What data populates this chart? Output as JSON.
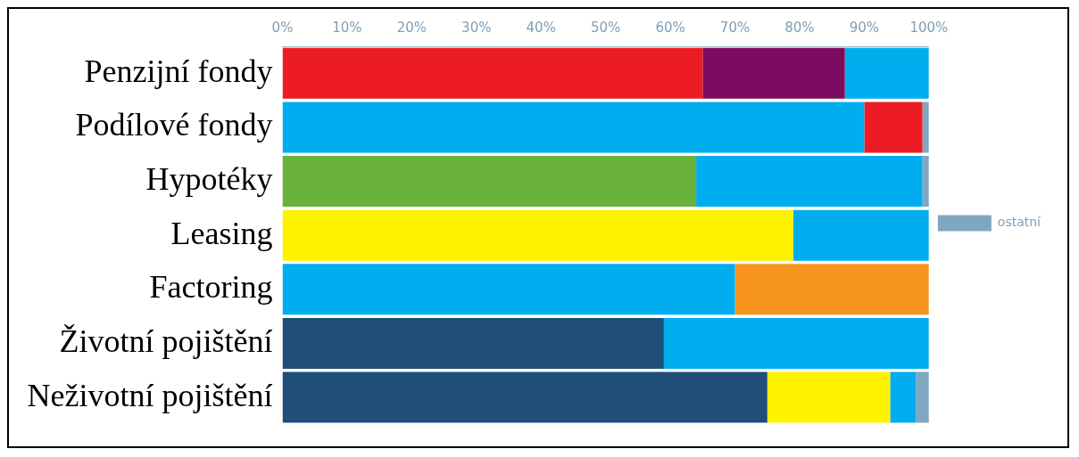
{
  "chart_data": {
    "type": "bar",
    "orientation": "horizontal",
    "stacked": true,
    "grid": false,
    "legend": "right",
    "categories": [
      "Penzijní fondy",
      "Podílové fondy",
      "Hypotéky",
      "Leasing",
      "Factoring",
      "Životní pojištění",
      "Neživotní pojištění"
    ],
    "xlim": [
      0,
      100
    ],
    "xticks": [
      {
        "value": 0,
        "label": "0%"
      },
      {
        "value": 10,
        "label": "10%"
      },
      {
        "value": 20,
        "label": "20%"
      },
      {
        "value": 30,
        "label": "30%"
      },
      {
        "value": 40,
        "label": "40%"
      },
      {
        "value": 50,
        "label": "50%"
      },
      {
        "value": 60,
        "label": "60%"
      },
      {
        "value": 70,
        "label": "70%"
      },
      {
        "value": 80,
        "label": "80%"
      },
      {
        "value": 90,
        "label": "90%"
      },
      {
        "value": 100,
        "label": "100%"
      }
    ],
    "series": [
      {
        "color": "#00aeef",
        "values": [
          null,
          90,
          null,
          null,
          70,
          null,
          null
        ]
      },
      {
        "color": "#1f4e79",
        "values": [
          null,
          null,
          null,
          null,
          null,
          59,
          75
        ]
      },
      {
        "color": "#6ab23e",
        "values": [
          null,
          null,
          64,
          null,
          null,
          null,
          null
        ]
      },
      {
        "color": "#fff200",
        "values": [
          null,
          null,
          null,
          79,
          null,
          null,
          19
        ]
      },
      {
        "color": "#ed1c24",
        "values": [
          65,
          9,
          null,
          null,
          null,
          null,
          null
        ]
      },
      {
        "color": "#7b0c5f",
        "values": [
          22,
          null,
          null,
          null,
          null,
          null,
          null
        ]
      },
      {
        "color": "#00aeef",
        "values": [
          13,
          null,
          35,
          21,
          null,
          41,
          4
        ]
      },
      {
        "color": "#f7941d",
        "values": [
          null,
          null,
          null,
          null,
          30,
          null,
          null
        ]
      },
      {
        "name": "ostatní",
        "color": "#7fa7c0",
        "values": [
          null,
          1,
          1,
          null,
          null,
          null,
          2
        ]
      }
    ]
  }
}
